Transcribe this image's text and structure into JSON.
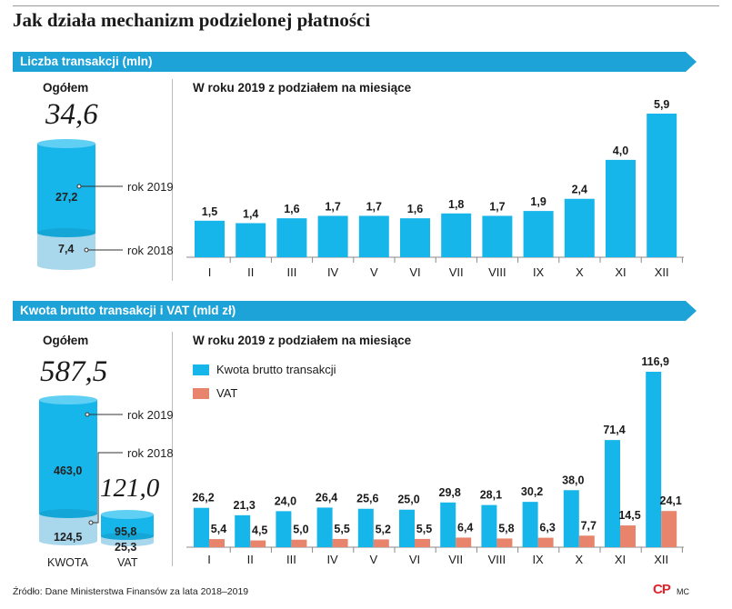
{
  "title": "Jak działa mechanizm podzielonej płatności",
  "colors": {
    "accent": "#1ea3d8",
    "bar_main": "#17b6ea",
    "bar_vat": "#e7846b",
    "cyl_light": "#a9d7ec"
  },
  "section1": {
    "header": "Liczba transakcji (mln)",
    "overall_label": "Ogółem",
    "overall_total": "34,6",
    "cyl_top_value": "27,2",
    "cyl_bottom_value": "7,4",
    "label_top": "rok 2019",
    "label_bottom": "rok 2018",
    "monthly_title": "W roku 2019 z podziałem na miesiące"
  },
  "section2": {
    "header": "Kwota brutto transakcji i VAT (mld zł)",
    "overall_label": "Ogółem",
    "kwota_total": "587,5",
    "kwota_2019": "463,0",
    "kwota_2018": "124,5",
    "kwota_caption": "KWOTA",
    "vat_total": "121,0",
    "vat_2019": "95,8",
    "vat_2018": "25,3",
    "vat_caption": "VAT",
    "label_2019": "rok 2019",
    "label_2018": "rok 2018",
    "monthly_title": "W roku 2019 z podziałem na miesiące"
  },
  "source": "Źródło: Dane Ministerstwa Finansów za lata 2018–2019",
  "logo": "CP",
  "initials": "MC",
  "chart_data": [
    {
      "type": "bar",
      "title": "W roku 2019 z podziałem na miesiące",
      "categories": [
        "I",
        "II",
        "III",
        "IV",
        "V",
        "VI",
        "VII",
        "VIII",
        "IX",
        "X",
        "XI",
        "XII"
      ],
      "values": [
        1.5,
        1.4,
        1.6,
        1.7,
        1.7,
        1.6,
        1.8,
        1.7,
        1.9,
        2.4,
        4.0,
        5.9
      ],
      "labels": [
        "1,5",
        "1,4",
        "1,6",
        "1,7",
        "1,7",
        "1,6",
        "1,8",
        "1,7",
        "1,9",
        "2,4",
        "4,0",
        "5,9"
      ],
      "ylabel": "Liczba transakcji (mln)",
      "ylim": [
        0,
        5.9
      ]
    },
    {
      "type": "bar",
      "title": "W roku 2019 z podziałem na miesiące",
      "categories": [
        "I",
        "II",
        "III",
        "IV",
        "V",
        "VI",
        "VII",
        "VIII",
        "IX",
        "X",
        "XI",
        "XII"
      ],
      "series": [
        {
          "name": "Kwota brutto transakcji",
          "values": [
            26.2,
            21.3,
            24.0,
            26.4,
            25.6,
            25.0,
            29.8,
            28.1,
            30.2,
            38.0,
            71.4,
            116.9
          ],
          "labels": [
            "26,2",
            "21,3",
            "24,0",
            "26,4",
            "25,6",
            "25,0",
            "29,8",
            "28,1",
            "30,2",
            "38,0",
            "71,4",
            "116,9"
          ]
        },
        {
          "name": "VAT",
          "values": [
            5.4,
            4.5,
            5.0,
            5.5,
            5.2,
            5.5,
            6.4,
            5.8,
            6.3,
            7.7,
            14.5,
            24.1
          ],
          "labels": [
            "5,4",
            "4,5",
            "5,0",
            "5,5",
            "5,2",
            "5,5",
            "6,4",
            "5,8",
            "6,3",
            "7,7",
            "14,5",
            "24,1"
          ]
        }
      ],
      "ylabel": "mld zł",
      "ylim": [
        0,
        116.9
      ]
    }
  ]
}
